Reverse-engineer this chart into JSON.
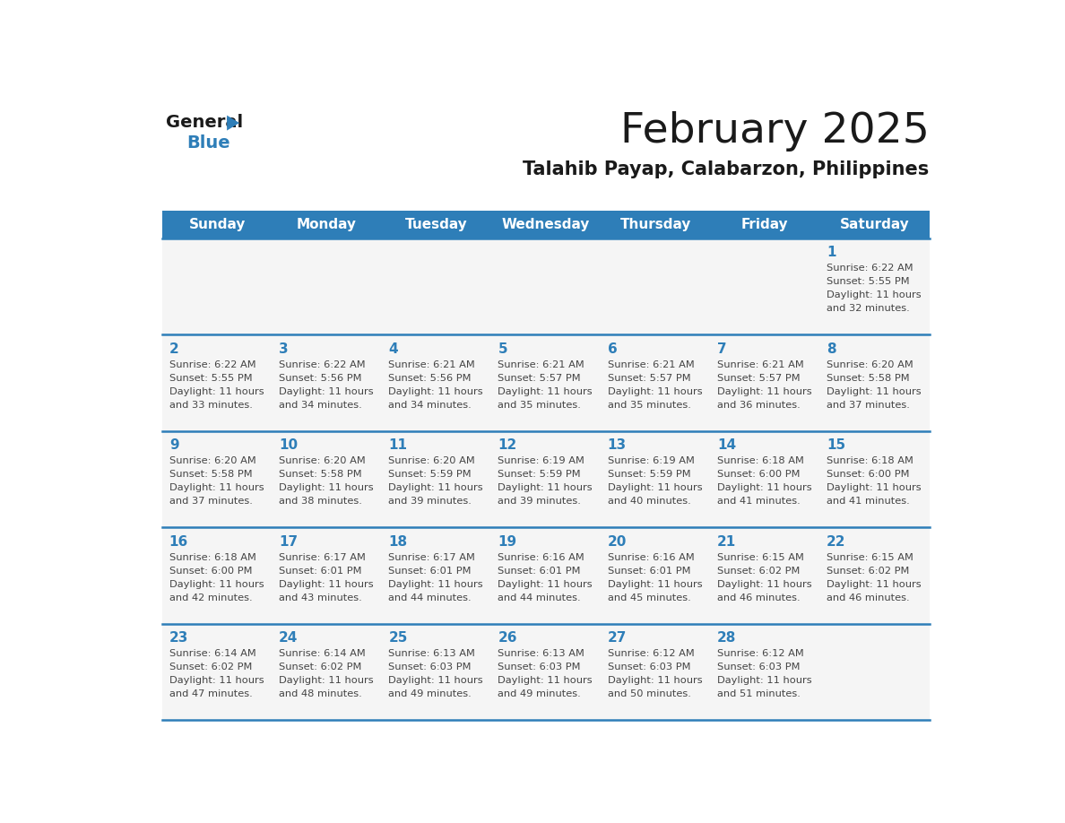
{
  "title": "February 2025",
  "subtitle": "Talahib Payap, Calabarzon, Philippines",
  "header_bg": "#2E7EB8",
  "header_text_color": "#FFFFFF",
  "cell_bg": "#F5F5F5",
  "day_number_color": "#2E7EB8",
  "text_color": "#444444",
  "line_color": "#2E7EB8",
  "days_of_week": [
    "Sunday",
    "Monday",
    "Tuesday",
    "Wednesday",
    "Thursday",
    "Friday",
    "Saturday"
  ],
  "calendar_data": [
    [
      null,
      null,
      null,
      null,
      null,
      null,
      {
        "day": 1,
        "sunrise": "6:22 AM",
        "sunset": "5:55 PM",
        "daylight": "11 hours and 32 minutes."
      }
    ],
    [
      {
        "day": 2,
        "sunrise": "6:22 AM",
        "sunset": "5:55 PM",
        "daylight": "11 hours and 33 minutes."
      },
      {
        "day": 3,
        "sunrise": "6:22 AM",
        "sunset": "5:56 PM",
        "daylight": "11 hours and 34 minutes."
      },
      {
        "day": 4,
        "sunrise": "6:21 AM",
        "sunset": "5:56 PM",
        "daylight": "11 hours and 34 minutes."
      },
      {
        "day": 5,
        "sunrise": "6:21 AM",
        "sunset": "5:57 PM",
        "daylight": "11 hours and 35 minutes."
      },
      {
        "day": 6,
        "sunrise": "6:21 AM",
        "sunset": "5:57 PM",
        "daylight": "11 hours and 35 minutes."
      },
      {
        "day": 7,
        "sunrise": "6:21 AM",
        "sunset": "5:57 PM",
        "daylight": "11 hours and 36 minutes."
      },
      {
        "day": 8,
        "sunrise": "6:20 AM",
        "sunset": "5:58 PM",
        "daylight": "11 hours and 37 minutes."
      }
    ],
    [
      {
        "day": 9,
        "sunrise": "6:20 AM",
        "sunset": "5:58 PM",
        "daylight": "11 hours and 37 minutes."
      },
      {
        "day": 10,
        "sunrise": "6:20 AM",
        "sunset": "5:58 PM",
        "daylight": "11 hours and 38 minutes."
      },
      {
        "day": 11,
        "sunrise": "6:20 AM",
        "sunset": "5:59 PM",
        "daylight": "11 hours and 39 minutes."
      },
      {
        "day": 12,
        "sunrise": "6:19 AM",
        "sunset": "5:59 PM",
        "daylight": "11 hours and 39 minutes."
      },
      {
        "day": 13,
        "sunrise": "6:19 AM",
        "sunset": "5:59 PM",
        "daylight": "11 hours and 40 minutes."
      },
      {
        "day": 14,
        "sunrise": "6:18 AM",
        "sunset": "6:00 PM",
        "daylight": "11 hours and 41 minutes."
      },
      {
        "day": 15,
        "sunrise": "6:18 AM",
        "sunset": "6:00 PM",
        "daylight": "11 hours and 41 minutes."
      }
    ],
    [
      {
        "day": 16,
        "sunrise": "6:18 AM",
        "sunset": "6:00 PM",
        "daylight": "11 hours and 42 minutes."
      },
      {
        "day": 17,
        "sunrise": "6:17 AM",
        "sunset": "6:01 PM",
        "daylight": "11 hours and 43 minutes."
      },
      {
        "day": 18,
        "sunrise": "6:17 AM",
        "sunset": "6:01 PM",
        "daylight": "11 hours and 44 minutes."
      },
      {
        "day": 19,
        "sunrise": "6:16 AM",
        "sunset": "6:01 PM",
        "daylight": "11 hours and 44 minutes."
      },
      {
        "day": 20,
        "sunrise": "6:16 AM",
        "sunset": "6:01 PM",
        "daylight": "11 hours and 45 minutes."
      },
      {
        "day": 21,
        "sunrise": "6:15 AM",
        "sunset": "6:02 PM",
        "daylight": "11 hours and 46 minutes."
      },
      {
        "day": 22,
        "sunrise": "6:15 AM",
        "sunset": "6:02 PM",
        "daylight": "11 hours and 46 minutes."
      }
    ],
    [
      {
        "day": 23,
        "sunrise": "6:14 AM",
        "sunset": "6:02 PM",
        "daylight": "11 hours and 47 minutes."
      },
      {
        "day": 24,
        "sunrise": "6:14 AM",
        "sunset": "6:02 PM",
        "daylight": "11 hours and 48 minutes."
      },
      {
        "day": 25,
        "sunrise": "6:13 AM",
        "sunset": "6:03 PM",
        "daylight": "11 hours and 49 minutes."
      },
      {
        "day": 26,
        "sunrise": "6:13 AM",
        "sunset": "6:03 PM",
        "daylight": "11 hours and 49 minutes."
      },
      {
        "day": 27,
        "sunrise": "6:12 AM",
        "sunset": "6:03 PM",
        "daylight": "11 hours and 50 minutes."
      },
      {
        "day": 28,
        "sunrise": "6:12 AM",
        "sunset": "6:03 PM",
        "daylight": "11 hours and 51 minutes."
      },
      null
    ]
  ]
}
